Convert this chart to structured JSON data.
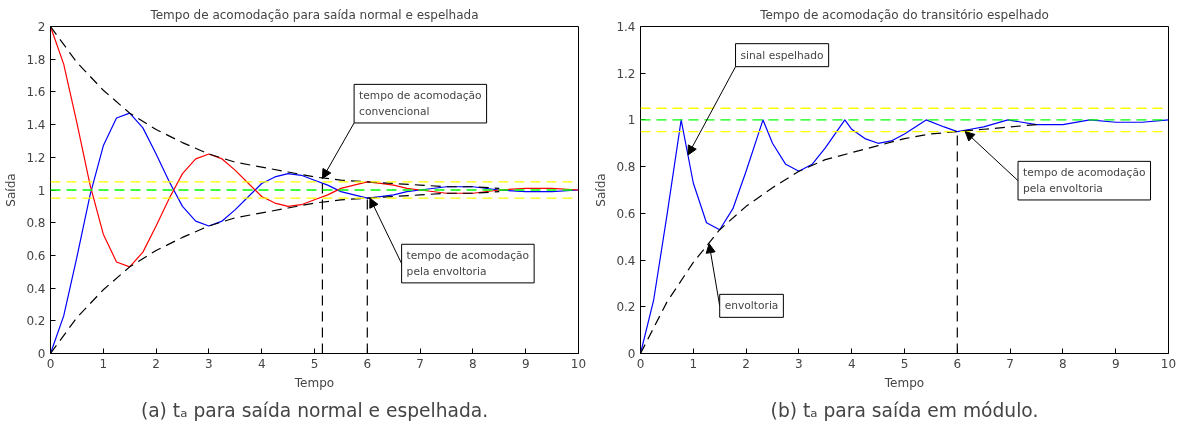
{
  "chart_data": [
    {
      "type": "line",
      "title": "Tempo de acomodação para saída normal e espelhada",
      "xlabel": "Tempo",
      "ylabel": "Saída",
      "xlim": [
        0,
        10
      ],
      "ylim": [
        0,
        2
      ],
      "xticks": [
        0,
        1,
        2,
        3,
        4,
        5,
        6,
        7,
        8,
        9,
        10
      ],
      "yticks": [
        0,
        0.2,
        0.4,
        0.6,
        0.8,
        1,
        1.2,
        1.4,
        1.6,
        1.8,
        2
      ],
      "grid": false,
      "x": [
        0,
        0.25,
        0.5,
        0.75,
        1,
        1.25,
        1.5,
        1.75,
        2,
        2.25,
        2.5,
        2.75,
        3,
        3.25,
        3.5,
        3.75,
        4,
        4.25,
        4.5,
        4.75,
        5,
        5.25,
        5.5,
        5.75,
        6,
        6.25,
        6.5,
        6.75,
        7,
        7.5,
        8,
        8.5,
        9,
        9.5,
        10
      ],
      "series": [
        {
          "color": "#0000ff",
          "line_style": "solid",
          "values": [
            0,
            0.23,
            0.59,
            0.97,
            1.27,
            1.44,
            1.47,
            1.38,
            1.22,
            1.05,
            0.9,
            0.81,
            0.78,
            0.81,
            0.88,
            0.96,
            1.04,
            1.08,
            1.1,
            1.09,
            1.06,
            1.03,
            0.99,
            0.97,
            0.95,
            0.96,
            0.97,
            0.99,
            1.0,
            1.02,
            1.02,
            1.0,
            0.99,
            0.99,
            1.0
          ]
        },
        {
          "color": "#ff0000",
          "line_style": "solid",
          "values": [
            2,
            1.77,
            1.41,
            1.03,
            0.73,
            0.56,
            0.53,
            0.62,
            0.78,
            0.95,
            1.1,
            1.19,
            1.22,
            1.19,
            1.12,
            1.04,
            0.96,
            0.92,
            0.9,
            0.91,
            0.94,
            0.97,
            1.01,
            1.03,
            1.05,
            1.04,
            1.03,
            1.01,
            1.0,
            0.98,
            0.98,
            1.0,
            1.01,
            1.01,
            1.0
          ]
        },
        {
          "color": "#000000",
          "line_style": "dashed",
          "x": [
            0,
            0.5,
            1,
            1.5,
            2,
            2.5,
            3,
            3.5,
            4,
            4.5,
            5,
            5.5,
            6,
            6.5,
            7,
            7.5,
            8,
            8.5
          ],
          "values": [
            2,
            1.78,
            1.61,
            1.47,
            1.37,
            1.29,
            1.22,
            1.17,
            1.14,
            1.11,
            1.08,
            1.06,
            1.05,
            1.04,
            1.03,
            1.02,
            1.02,
            1.01
          ]
        },
        {
          "color": "#000000",
          "line_style": "dashed",
          "x": [
            0,
            0.5,
            1,
            1.5,
            2,
            2.5,
            3,
            3.5,
            4,
            4.5,
            5,
            5.5,
            6,
            6.5,
            7,
            7.5,
            8,
            8.5
          ],
          "values": [
            0,
            0.22,
            0.39,
            0.53,
            0.63,
            0.71,
            0.78,
            0.83,
            0.86,
            0.89,
            0.92,
            0.94,
            0.95,
            0.96,
            0.97,
            0.98,
            0.98,
            0.99
          ]
        },
        {
          "color": "#000000",
          "line_style": "dashed",
          "x": [
            5.15,
            5.15
          ],
          "values": [
            0,
            1.07
          ]
        },
        {
          "color": "#000000",
          "line_style": "dashed",
          "x": [
            6,
            6
          ],
          "values": [
            0,
            0.95
          ]
        }
      ],
      "ref_lines": [
        {
          "axis": "y",
          "value": 1.05,
          "color": "#ffff00",
          "line_style": "dashed"
        },
        {
          "axis": "y",
          "value": 0.95,
          "color": "#ffff00",
          "line_style": "dashed"
        },
        {
          "axis": "y",
          "value": 1,
          "color": "#00ff00",
          "line_style": "dashed"
        }
      ],
      "annotations": [
        {
          "text": "tempo de acomodação\nconvencional",
          "x": 5.15,
          "y": 1.07
        },
        {
          "text": "tempo de acomodação\npela envoltoria",
          "x": 6.05,
          "y": 0.95
        },
        "(a) tₐ para saída normal e espelhada."
      ]
    },
    {
      "type": "line",
      "title": "Tempo de acomodação do transitório espelhado",
      "xlabel": "Tempo",
      "ylabel": "Saída",
      "xlim": [
        0,
        10
      ],
      "ylim": [
        0,
        1.4
      ],
      "xticks": [
        0,
        1,
        2,
        3,
        4,
        5,
        6,
        7,
        8,
        9,
        10
      ],
      "yticks": [
        0,
        0.2,
        0.4,
        0.6,
        0.8,
        1,
        1.2,
        1.4
      ],
      "grid": false,
      "x": [
        0,
        0.25,
        0.5,
        0.77,
        1,
        1.25,
        1.5,
        1.75,
        2,
        2.32,
        2.5,
        2.75,
        3,
        3.25,
        3.5,
        3.87,
        4,
        4.25,
        4.5,
        4.75,
        5,
        5.41,
        5.75,
        6,
        6.25,
        6.5,
        6.96,
        7.5,
        8,
        8.51,
        9,
        9.5,
        10
      ],
      "series": [
        {
          "color": "#0000ff",
          "line_style": "solid",
          "values": [
            0,
            0.23,
            0.59,
            1,
            0.73,
            0.56,
            0.53,
            0.62,
            0.78,
            1,
            0.9,
            0.81,
            0.78,
            0.81,
            0.88,
            1,
            0.96,
            0.92,
            0.9,
            0.91,
            0.94,
            1,
            0.97,
            0.95,
            0.96,
            0.97,
            1,
            0.98,
            0.98,
            1,
            0.99,
            0.99,
            1.0
          ]
        },
        {
          "color": "#000000",
          "line_style": "dashed",
          "x": [
            0,
            0.5,
            1,
            1.5,
            2,
            2.5,
            3,
            3.5,
            4,
            4.5,
            5,
            5.5,
            6,
            6.5,
            7,
            7.5
          ],
          "values": [
            0,
            0.22,
            0.39,
            0.53,
            0.63,
            0.71,
            0.78,
            0.83,
            0.86,
            0.89,
            0.92,
            0.94,
            0.95,
            0.96,
            0.97,
            0.98
          ]
        },
        {
          "color": "#000000",
          "line_style": "dashed",
          "x": [
            6,
            6
          ],
          "values": [
            0,
            0.95
          ]
        }
      ],
      "ref_lines": [
        {
          "axis": "y",
          "value": 1.05,
          "color": "#ffff00",
          "line_style": "dashed"
        },
        {
          "axis": "y",
          "value": 0.95,
          "color": "#ffff00",
          "line_style": "dashed"
        },
        {
          "axis": "y",
          "value": 1,
          "color": "#00ff00",
          "line_style": "dashed"
        }
      ],
      "annotations": [
        {
          "text": "sinal espelhado",
          "x": 0.9,
          "y": 0.85
        },
        {
          "text": "envoltoria",
          "x": 1.3,
          "y": 0.47
        },
        {
          "text": "tempo de acomodação\npela envoltoria",
          "x": 6.15,
          "y": 0.95
        },
        "(b) tₐ para saída em módulo."
      ]
    }
  ]
}
